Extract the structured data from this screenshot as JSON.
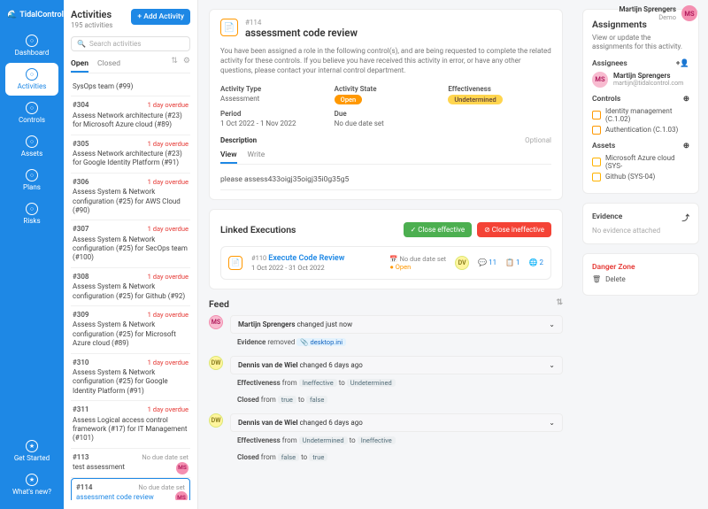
{
  "brand": "TidalControl",
  "user": {
    "name": "Martijn Sprengers",
    "sub": "Demo",
    "initials": "MS",
    "email": "martijn@tidalcontrol.com"
  },
  "nav": [
    {
      "label": "Dashboard"
    },
    {
      "label": "Activities"
    },
    {
      "label": "Controls"
    },
    {
      "label": "Assets"
    },
    {
      "label": "Plans"
    },
    {
      "label": "Risks"
    }
  ],
  "nav_bottom": [
    {
      "label": "Get Started"
    },
    {
      "label": "What's new?"
    }
  ],
  "activities": {
    "title": "Activities",
    "count": "195 activities",
    "add_btn": "+  Add Activity",
    "search_ph": "Search activities",
    "tabs": {
      "open": "Open",
      "closed": "Closed"
    },
    "items": [
      {
        "id": "",
        "title": "SysOps team (#99)",
        "over": ""
      },
      {
        "id": "#304",
        "title": "Assess Network architecture (#23) for Microsoft Azure cloud (#89)",
        "over": "1 day overdue"
      },
      {
        "id": "#305",
        "title": "Assess Network architecture (#23) for Google Identity Platform (#91)",
        "over": "1 day overdue"
      },
      {
        "id": "#306",
        "title": "Assess System & Network configuration (#25) for AWS Cloud (#90)",
        "over": "1 day overdue"
      },
      {
        "id": "#307",
        "title": "Assess System & Network configuration (#25) for SecOps team (#100)",
        "over": "1 day overdue"
      },
      {
        "id": "#308",
        "title": "Assess System & Network configuration (#25) for Github (#92)",
        "over": "1 day overdue"
      },
      {
        "id": "#309",
        "title": "Assess System & Network configuration (#25) for Microsoft Azure cloud (#89)",
        "over": "1 day overdue"
      },
      {
        "id": "#310",
        "title": "Assess System & Network configuration (#25) for Google Identity Platform (#91)",
        "over": "1 day overdue"
      },
      {
        "id": "#311",
        "title": "Assess Logical access control framework (#17) for IT Management (#101)",
        "over": "1 day overdue"
      },
      {
        "id": "#113",
        "title": "test assessment",
        "over": "No due date set",
        "avatar": "MS"
      },
      {
        "id": "#114",
        "title": "assessment code review",
        "over": "No due date set",
        "avatar": "MS",
        "selected": true
      }
    ]
  },
  "detail": {
    "id": "#114",
    "title": "assessment code review",
    "notice": "You have been assigned a role in the following control(s), and are being requested to complete the related activity for these controls. If you believe you have received this activity in error, or have any other questions, please contact your internal control department.",
    "meta": {
      "type_l": "Activity Type",
      "type_v": "Assessment",
      "state_l": "Activity State",
      "state_v": "Open",
      "eff_l": "Effectiveness",
      "eff_v": "Undetermined",
      "period_l": "Period",
      "period_v": "1 Oct 2022 - 1 Nov 2022",
      "due_l": "Due",
      "due_v": "No due date set"
    },
    "desc_l": "Description",
    "optional": "Optional",
    "desc_tabs": {
      "view": "View",
      "write": "Write"
    },
    "desc_text": "please assess433oigj35oigj35i0g35g5"
  },
  "linked": {
    "title": "Linked Executions",
    "btn_eff": "✓  Close effective",
    "btn_ineff": "⊘  Close ineffective",
    "exec": {
      "id": "#110",
      "title": "Execute Code Review",
      "period": "1 Oct 2022 - 31 Oct 2022",
      "due": "No due date set",
      "state": "Open",
      "c1": "11",
      "c2": "1",
      "c3": "2"
    }
  },
  "feed": {
    "title": "Feed",
    "items": [
      {
        "av": "MS",
        "avcls": "av-ms",
        "who": "Martijn Sprengers",
        "when": "changed just now",
        "lines": [
          {
            "html": "<b>Evidence</b> removed <span class='tag'>📎 desktop.ini</span>"
          }
        ]
      },
      {
        "av": "DW",
        "avcls": "av-dw",
        "who": "Dennis van de Wiel",
        "when": "changed 6 days ago",
        "lines": [
          {
            "html": "<b>Effectiveness</b> from <span class='tag-grey tag'>Ineffective</span> to <span class='tag-grey tag'>Undetermined</span>"
          },
          {
            "html": "<b>Closed</b> from <span class='tag-grey tag'>true</span> to <span class='tag-grey tag'>false</span>"
          }
        ]
      },
      {
        "av": "DW",
        "avcls": "av-dw",
        "who": "Dennis van de Wiel",
        "when": "changed 6 days ago",
        "lines": [
          {
            "html": "<b>Effectiveness</b> from <span class='tag-grey tag'>Undetermined</span> to <span class='tag-grey tag'>Ineffective</span>"
          },
          {
            "html": "<b>Closed</b> from <span class='tag-grey tag'>false</span> to <span class='tag-grey tag'>true</span>"
          }
        ]
      }
    ]
  },
  "right": {
    "assign_title": "Assignments",
    "assign_sub": "View or update the assignments for this activity.",
    "assignees_l": "Assignees",
    "controls_l": "Controls",
    "controls": [
      {
        "t": "Identity management (C.1.02)"
      },
      {
        "t": "Authentication (C.1.03)"
      }
    ],
    "assets_l": "Assets",
    "assets": [
      {
        "t": "Microsoft Azure cloud (SYS-"
      },
      {
        "t": "Github (SYS-04)"
      }
    ],
    "evidence_l": "Evidence",
    "evidence_empty": "No evidence attached",
    "danger_l": "Danger Zone",
    "delete": "Delete"
  }
}
